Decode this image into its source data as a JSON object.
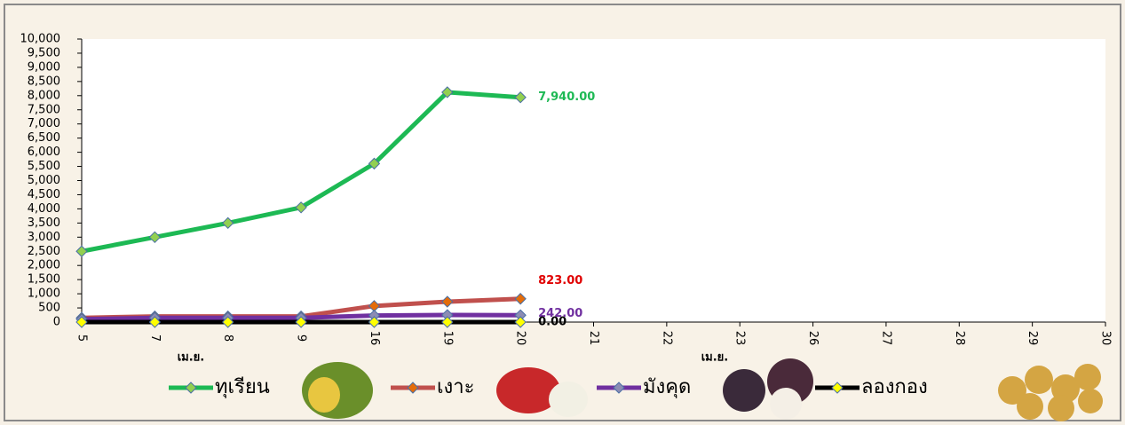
{
  "chart_data": {
    "type": "line",
    "categories": [
      "5",
      "7",
      "8",
      "9",
      "16",
      "19",
      "20",
      "21",
      "22",
      "23",
      "26",
      "27",
      "28",
      "29",
      "30"
    ],
    "x_group_labels": [
      "เม.ย.",
      "เม.ย."
    ],
    "ylim": [
      0,
      10000
    ],
    "yticks": [
      0,
      500,
      {
        "value": 1000,
        "label": "1,000"
      },
      {
        "value": 1500,
        "label": "1,500"
      },
      {
        "value": 2000,
        "label": "2,000"
      },
      {
        "value": 2500,
        "label": "2,500"
      },
      {
        "value": 3000,
        "label": "3,000"
      },
      {
        "value": 3500,
        "label": "3,500"
      },
      {
        "value": 4000,
        "label": "4,000"
      },
      {
        "value": 4500,
        "label": "4,500"
      },
      {
        "value": 5000,
        "label": "5,000"
      },
      {
        "value": 5500,
        "label": "5,500"
      },
      {
        "value": 6000,
        "label": "6,000"
      },
      {
        "value": 6500,
        "label": "6,500"
      },
      {
        "value": 7000,
        "label": "7,000"
      },
      {
        "value": 7500,
        "label": "7,500"
      },
      {
        "value": 8000,
        "label": "8,000"
      },
      {
        "value": 8500,
        "label": "8,500"
      },
      {
        "value": 9000,
        "label": "9,000"
      },
      {
        "value": 9500,
        "label": "9,500"
      },
      {
        "value": 10000,
        "label": "10,000"
      }
    ],
    "series": [
      {
        "name": "ทุเรียน",
        "color": "#1db954",
        "marker_color": "#92d050",
        "label_color": "#1db954",
        "values": [
          2500,
          3000,
          3500,
          4050,
          5600,
          8120,
          7940,
          null,
          null,
          null,
          null,
          null,
          null,
          null,
          null
        ],
        "value_labels": [
          null,
          null,
          null,
          null,
          null,
          null,
          "7,940.00",
          null,
          null,
          null,
          null,
          null,
          null,
          null,
          null
        ]
      },
      {
        "name": "เงาะ",
        "color": "#c0504d",
        "marker_color": "#e46c0a",
        "label_color": "#e00000",
        "values": [
          150,
          200,
          200,
          200,
          570,
          720,
          823,
          null,
          null,
          null,
          null,
          null,
          null,
          null,
          null
        ],
        "value_labels": [
          null,
          null,
          null,
          null,
          null,
          null,
          "823.00",
          null,
          null,
          null,
          null,
          null,
          null,
          null,
          null
        ]
      },
      {
        "name": "มังคุด",
        "color": "#7030a0",
        "marker_color": "#8c8cb4",
        "label_color": "#7030a0",
        "values": [
          100,
          150,
          150,
          150,
          230,
          250,
          242,
          null,
          null,
          null,
          null,
          null,
          null,
          null,
          null
        ],
        "value_labels": [
          null,
          null,
          null,
          null,
          null,
          null,
          "242.00",
          null,
          null,
          null,
          null,
          null,
          null,
          null,
          null
        ]
      },
      {
        "name": "ลองกอง",
        "color": "#000000",
        "marker_color": "#ffff00",
        "label_color": "#000000",
        "values": [
          0,
          0,
          0,
          0,
          0,
          0,
          0,
          null,
          null,
          null,
          null,
          null,
          null,
          null,
          null
        ],
        "value_labels": [
          null,
          null,
          null,
          null,
          null,
          null,
          "0.00",
          null,
          null,
          null,
          null,
          null,
          null,
          null,
          null
        ]
      }
    ]
  }
}
